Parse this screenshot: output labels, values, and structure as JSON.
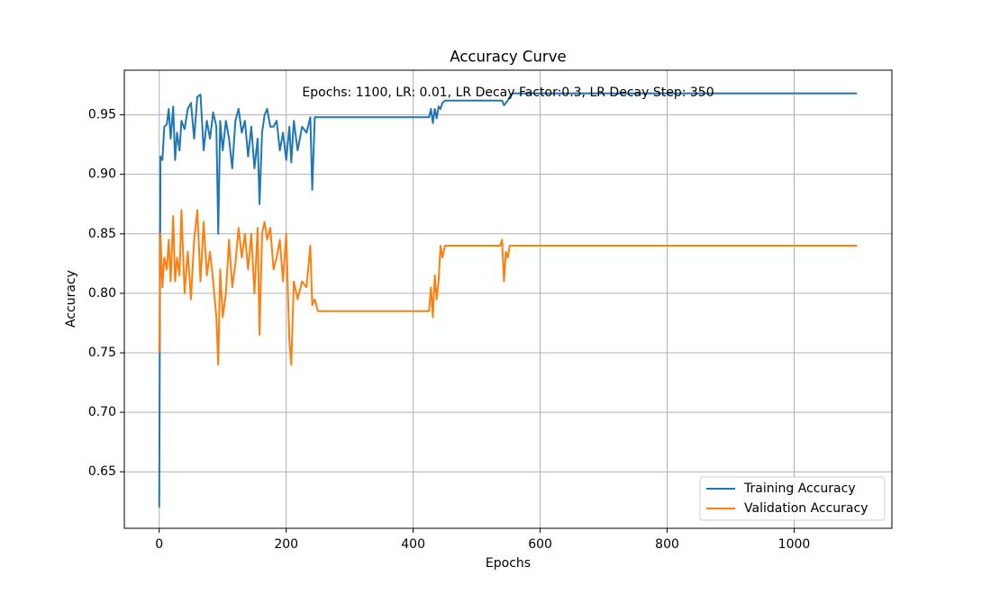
{
  "chart_data": {
    "type": "line",
    "title": "Accuracy Curve",
    "xlabel": "Epochs",
    "ylabel": "Accuracy",
    "annotation": "Epochs: 1100, LR: 0.01, LR Decay Factor:0.3, LR Decay Step: 350",
    "x": [
      0,
      2,
      5,
      8,
      12,
      15,
      18,
      22,
      25,
      28,
      32,
      35,
      40,
      45,
      50,
      55,
      60,
      65,
      70,
      75,
      80,
      85,
      90,
      93,
      96,
      100,
      105,
      110,
      115,
      120,
      125,
      130,
      135,
      140,
      145,
      150,
      155,
      158,
      162,
      166,
      170,
      175,
      180,
      185,
      190,
      195,
      200,
      205,
      208,
      212,
      218,
      225,
      232,
      238,
      241,
      245,
      250,
      300,
      350,
      400,
      425,
      428,
      431,
      434,
      437,
      440,
      443,
      446,
      450,
      500,
      537,
      540,
      543,
      546,
      549,
      552,
      556,
      600,
      800,
      1000,
      1099
    ],
    "series": [
      {
        "name": "Training Accuracy",
        "color": "#1f77b4",
        "values": [
          0.62,
          0.915,
          0.912,
          0.94,
          0.942,
          0.955,
          0.93,
          0.957,
          0.912,
          0.935,
          0.92,
          0.945,
          0.938,
          0.955,
          0.96,
          0.93,
          0.965,
          0.967,
          0.92,
          0.945,
          0.93,
          0.952,
          0.94,
          0.85,
          0.945,
          0.92,
          0.945,
          0.93,
          0.905,
          0.945,
          0.955,
          0.935,
          0.945,
          0.915,
          0.94,
          0.905,
          0.93,
          0.875,
          0.935,
          0.95,
          0.955,
          0.94,
          0.94,
          0.945,
          0.92,
          0.935,
          0.912,
          0.94,
          0.91,
          0.945,
          0.92,
          0.94,
          0.935,
          0.948,
          0.887,
          0.948,
          0.948,
          0.948,
          0.948,
          0.948,
          0.948,
          0.955,
          0.943,
          0.955,
          0.947,
          0.957,
          0.955,
          0.96,
          0.962,
          0.962,
          0.962,
          0.962,
          0.958,
          0.96,
          0.962,
          0.965,
          0.968,
          0.968,
          0.968,
          0.968,
          0.968
        ]
      },
      {
        "name": "Validation Accuracy",
        "color": "#ff7f0e",
        "values": [
          0.75,
          0.85,
          0.805,
          0.83,
          0.82,
          0.845,
          0.81,
          0.865,
          0.81,
          0.83,
          0.815,
          0.87,
          0.8,
          0.835,
          0.795,
          0.845,
          0.87,
          0.81,
          0.86,
          0.815,
          0.835,
          0.81,
          0.78,
          0.74,
          0.82,
          0.78,
          0.8,
          0.845,
          0.805,
          0.825,
          0.855,
          0.83,
          0.85,
          0.82,
          0.85,
          0.8,
          0.855,
          0.765,
          0.85,
          0.86,
          0.845,
          0.855,
          0.82,
          0.83,
          0.845,
          0.81,
          0.85,
          0.76,
          0.74,
          0.81,
          0.795,
          0.81,
          0.805,
          0.84,
          0.79,
          0.795,
          0.785,
          0.785,
          0.785,
          0.785,
          0.785,
          0.805,
          0.78,
          0.815,
          0.795,
          0.81,
          0.84,
          0.83,
          0.84,
          0.84,
          0.84,
          0.845,
          0.81,
          0.835,
          0.83,
          0.84,
          0.84,
          0.84,
          0.84,
          0.84,
          0.84
        ]
      }
    ],
    "xlim": [
      -54.95,
      1153.95
    ],
    "ylim": [
      0.6025,
      0.9875
    ],
    "xticks": [
      0,
      200,
      400,
      600,
      800,
      1000
    ],
    "yticks": [
      0.65,
      {
        "value": 0.7,
        "label": "0.70"
      },
      0.75,
      {
        "value": 0.8,
        "label": "0.80"
      },
      0.85,
      {
        "value": 0.9,
        "label": "0.90"
      },
      0.95
    ],
    "grid": true,
    "legend": "lower right"
  }
}
